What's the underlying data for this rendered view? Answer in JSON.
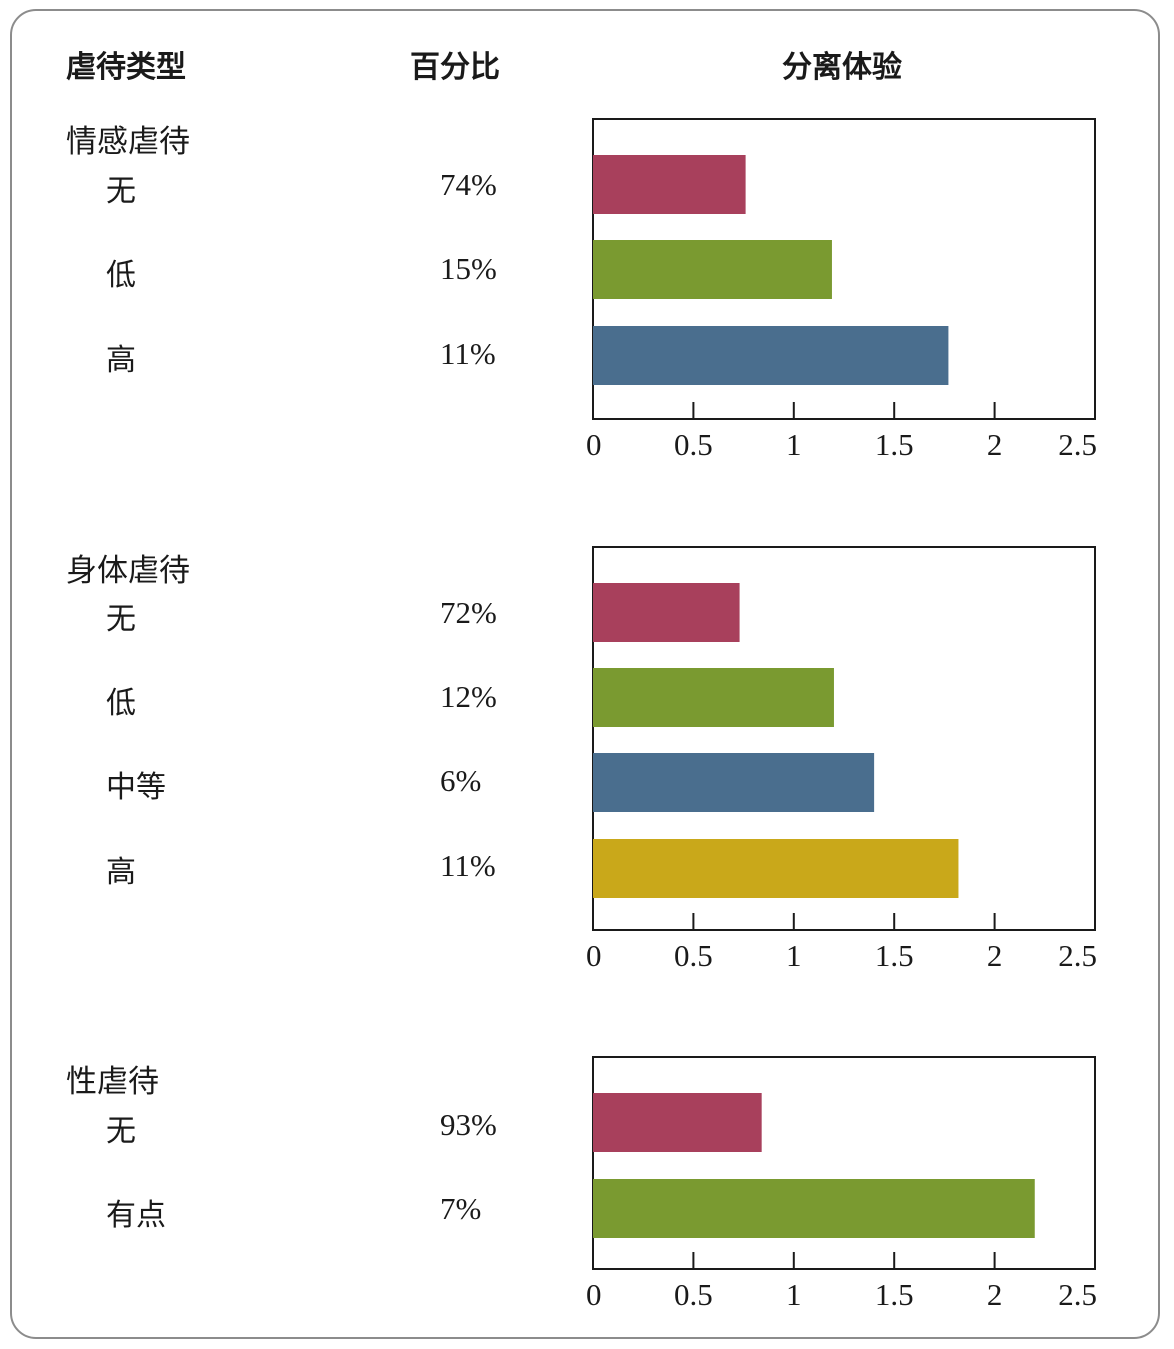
{
  "headers": {
    "type": "虐待类型",
    "percent": "百分比",
    "measure": "分离体验"
  },
  "chart_data": [
    {
      "type": "bar",
      "orientation": "horizontal",
      "group": "情感虐待",
      "categories": [
        "无",
        "低",
        "高"
      ],
      "percentages": [
        "74%",
        "15%",
        "11%"
      ],
      "values": [
        0.76,
        1.19,
        1.77
      ],
      "colors": [
        "#a8405c",
        "#7a9a30",
        "#4a6e8e"
      ],
      "xlim": [
        0,
        2.5
      ],
      "xticks": [
        "0",
        "0.5",
        "1",
        "1.5",
        "2",
        "2.5"
      ],
      "xlabel": "分离体验",
      "grid": false
    },
    {
      "type": "bar",
      "orientation": "horizontal",
      "group": "身体虐待",
      "categories": [
        "无",
        "低",
        "中等",
        "高"
      ],
      "percentages": [
        "72%",
        "12%",
        "6%",
        "11%"
      ],
      "values": [
        0.73,
        1.2,
        1.4,
        1.82
      ],
      "colors": [
        "#a8405c",
        "#7a9a30",
        "#4a6e8e",
        "#c9a81a"
      ],
      "xlim": [
        0,
        2.5
      ],
      "xticks": [
        "0",
        "0.5",
        "1",
        "1.5",
        "2",
        "2.5"
      ],
      "xlabel": "分离体验",
      "grid": false
    },
    {
      "type": "bar",
      "orientation": "horizontal",
      "group": "性虐待",
      "categories": [
        "无",
        "有点"
      ],
      "percentages": [
        "93%",
        "7%"
      ],
      "values": [
        0.84,
        2.2
      ],
      "colors": [
        "#a8405c",
        "#7a9a30"
      ],
      "xlim": [
        0,
        2.5
      ],
      "xticks": [
        "0",
        "0.5",
        "1",
        "1.5",
        "2",
        "2.5"
      ],
      "xlabel": "分离体验",
      "grid": false
    }
  ]
}
